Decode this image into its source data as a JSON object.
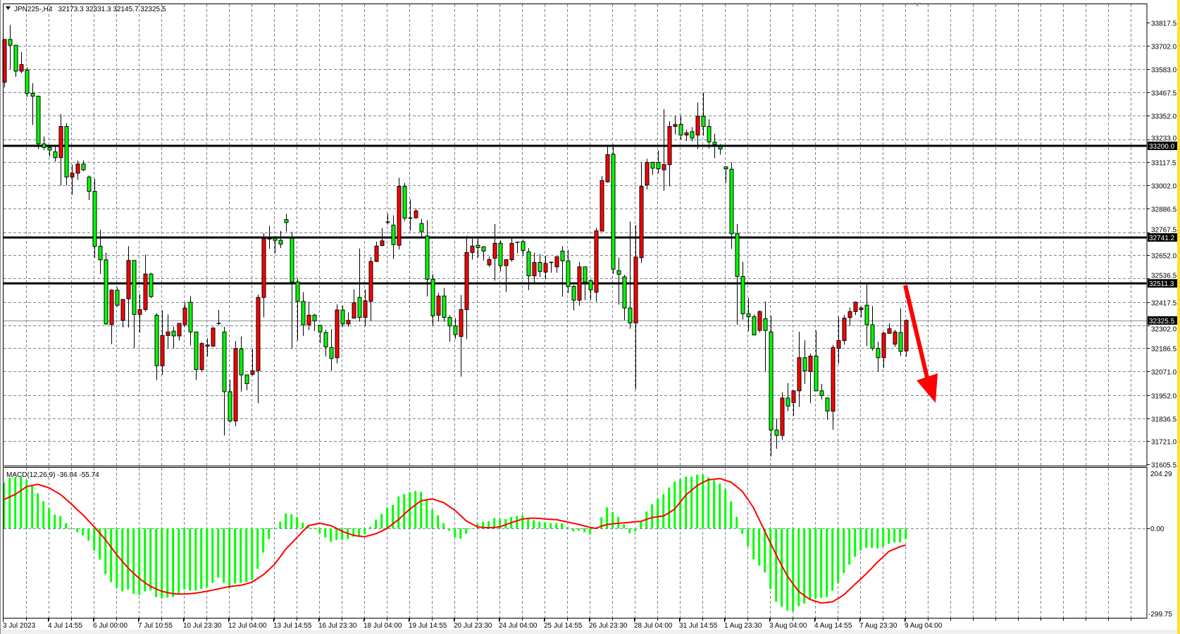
{
  "header": {
    "symbol": "JPN225-,H4",
    "ohlc": "32173.3 32331.3 32145.7 32325.5",
    "menu_icon": "triangle-down-icon"
  },
  "indicator": {
    "label": "MACD(12,26,9) -36.04 -55.74",
    "axis_labels": [
      "204.29",
      "0.00",
      "-299.75"
    ]
  },
  "colors": {
    "bull_candle": "#ff0000",
    "bear_candle": "#00ff00",
    "macd_histogram": "#00ff00",
    "macd_signal": "#ff0000",
    "level_line": "#000000",
    "arrow": "#ff0000",
    "grid": "#7a8591",
    "right_edge": "#ffe033"
  },
  "chart_data": {
    "type": "candlestick",
    "price_ticks": [
      "33817.5",
      "33702.0",
      "33583.0",
      "33467.5",
      "33352.0",
      "33233.0",
      "33117.5",
      "33002.0",
      "32886.5",
      "32767.5",
      "32652.0",
      "32536.5",
      "32417.5",
      "32302.0",
      "32186.5",
      "32071.0",
      "31952.0",
      "31836.5",
      "31721.0",
      "31605.5"
    ],
    "ylim": [
      31605.5,
      33817.5
    ],
    "grid": true,
    "levels": [
      {
        "price": 33200.0,
        "label": "33200.0"
      },
      {
        "price": 32741.2,
        "label": "32741.2"
      },
      {
        "price": 32511.3,
        "label": "32511.3"
      }
    ],
    "current_price": {
      "price": 32325.5,
      "label": "32325.5"
    },
    "time_labels": [
      "3 Jul 2023",
      "4 Jul 14:55",
      "6 Jul 00:00",
      "7 Jul 10:55",
      "10 Jul 23:30",
      "12 Jul 04:00",
      "13 Jul 14:55",
      "16 Jul 23:30",
      "18 Jul 04:00",
      "19 Jul 14:55",
      "20 Jul 23:30",
      "24 Jul 04:00",
      "25 Jul 14:55",
      "26 Jul 23:30",
      "28 Jul 04:00",
      "31 Jul 14:55",
      "1 Aug 23:30",
      "3 Aug 04:00",
      "4 Aug 14:55",
      "7 Aug 23:30",
      "9 Aug 04:00"
    ],
    "time_label_every_bars": 8,
    "candles_ohlc": [
      [
        33519,
        33733,
        33492,
        33733
      ],
      [
        33733,
        33805,
        33586,
        33704
      ],
      [
        33704,
        33704,
        33545,
        33574
      ],
      [
        33574,
        33669,
        33564,
        33607
      ],
      [
        33579,
        33593,
        33444,
        33463
      ],
      [
        33463,
        33514,
        33304,
        33449
      ],
      [
        33449,
        33449,
        33184,
        33210
      ],
      [
        33210,
        33247,
        33179,
        33192
      ],
      [
        33192,
        33196,
        33146,
        33179
      ],
      [
        33170,
        33196,
        33121,
        33141
      ],
      [
        33141,
        33358,
        33001,
        33297
      ],
      [
        33297,
        33314,
        33001,
        33044
      ],
      [
        33044,
        33106,
        32955,
        33063
      ],
      [
        33063,
        33127,
        33030,
        33109
      ],
      [
        33109,
        33127,
        33073,
        33080
      ],
      [
        33044,
        33052,
        32929,
        32972
      ],
      [
        32972,
        33034,
        32640,
        32697
      ],
      [
        32697,
        32780,
        32558,
        32629
      ],
      [
        32629,
        32665,
        32304,
        32308
      ],
      [
        32305,
        32481,
        32207,
        32477
      ],
      [
        32477,
        32492,
        32395,
        32402
      ],
      [
        32327,
        32431,
        32291,
        32431
      ],
      [
        32434,
        32698,
        32291,
        32626
      ],
      [
        32626,
        32626,
        32188,
        32356
      ],
      [
        32356,
        32457,
        32265,
        32380
      ],
      [
        32380,
        32655,
        32370,
        32558
      ],
      [
        32558,
        32564,
        32438,
        32445
      ],
      [
        32352,
        32362,
        32027,
        32099
      ],
      [
        32099,
        32376,
        32053,
        32250
      ],
      [
        32250,
        32356,
        32185,
        32268
      ],
      [
        32272,
        32294,
        32185,
        32248
      ],
      [
        32248,
        32311,
        32225,
        32311
      ],
      [
        32305,
        32417,
        32294,
        32388
      ],
      [
        32417,
        32448,
        32200,
        32268
      ],
      [
        32268,
        32268,
        32027,
        32080
      ],
      [
        32080,
        32217,
        32070,
        32210
      ],
      [
        32197,
        32236,
        32145,
        32203
      ],
      [
        32197,
        32294,
        32193,
        32287
      ],
      [
        32311,
        32378,
        32301,
        32311
      ],
      [
        32268,
        32294,
        31750,
        31969
      ],
      [
        31969,
        32027,
        31813,
        31822
      ],
      [
        31822,
        32222,
        31796,
        32185
      ],
      [
        32183,
        32246,
        31969,
        32053
      ],
      [
        32053,
        32053,
        31976,
        32009
      ],
      [
        32056,
        32183,
        32050,
        32073
      ],
      [
        32074,
        32455,
        31911,
        32441
      ],
      [
        32441,
        32763,
        32341,
        32737
      ],
      [
        32734,
        32799,
        32684,
        32731
      ],
      [
        32737,
        32749,
        32662,
        32727
      ],
      [
        32727,
        32774,
        32688,
        32708
      ],
      [
        32831,
        32860,
        32770,
        32816
      ],
      [
        32737,
        32770,
        32183,
        32518
      ],
      [
        32518,
        32535,
        32225,
        32421
      ],
      [
        32421,
        32467,
        32248,
        32304
      ],
      [
        32304,
        32421,
        32277,
        32352
      ],
      [
        32352,
        32359,
        32272,
        32323
      ],
      [
        32301,
        32304,
        32212,
        32268
      ],
      [
        32265,
        32279,
        32145,
        32193
      ],
      [
        32190,
        32282,
        32074,
        32135
      ],
      [
        32139,
        32406,
        32110,
        32378
      ],
      [
        32378,
        32399,
        32294,
        32308
      ],
      [
        32308,
        32366,
        32294,
        32326
      ],
      [
        32337,
        32481,
        32335,
        32414
      ],
      [
        32441,
        32686,
        32320,
        32341
      ],
      [
        32341,
        32481,
        32298,
        32424
      ],
      [
        32421,
        32643,
        32323,
        32621
      ],
      [
        32621,
        32720,
        32618,
        32698
      ],
      [
        32701,
        32789,
        32698,
        32724
      ],
      [
        32818,
        32860,
        32806,
        32818
      ],
      [
        32803,
        32852,
        32633,
        32705
      ],
      [
        32702,
        33040,
        32681,
        32997
      ],
      [
        32997,
        33014,
        32824,
        32838
      ],
      [
        32838,
        32932,
        32774,
        32838
      ],
      [
        32840,
        32886,
        32835,
        32874
      ],
      [
        32811,
        32835,
        32746,
        32770
      ],
      [
        32749,
        32828,
        32445,
        32532
      ],
      [
        32532,
        32557,
        32301,
        32349
      ],
      [
        32352,
        32464,
        32320,
        32448
      ],
      [
        32448,
        32489,
        32320,
        32341
      ],
      [
        32341,
        32352,
        32219,
        32298
      ],
      [
        32298,
        32337,
        32233,
        32255
      ],
      [
        32246,
        32453,
        32044,
        32380
      ],
      [
        32380,
        32749,
        32232,
        32666
      ],
      [
        32666,
        32734,
        32630,
        32698
      ],
      [
        32702,
        32741,
        32640,
        32691
      ],
      [
        32694,
        32698,
        32626,
        32673
      ],
      [
        32604,
        32645,
        32593,
        32630
      ],
      [
        32637,
        32809,
        32525,
        32712
      ],
      [
        32712,
        32727,
        32572,
        32600
      ],
      [
        32600,
        32630,
        32467,
        32630
      ],
      [
        32630,
        32737,
        32619,
        32712
      ],
      [
        32717,
        32720,
        32662,
        32717
      ],
      [
        32720,
        32731,
        32650,
        32676
      ],
      [
        32669,
        32688,
        32477,
        32549
      ],
      [
        32549,
        32665,
        32515,
        32616
      ],
      [
        32616,
        32658,
        32542,
        32571
      ],
      [
        32568,
        32650,
        32532,
        32611
      ],
      [
        32616,
        32621,
        32564,
        32616
      ],
      [
        32594,
        32645,
        32564,
        32645
      ],
      [
        32673,
        32698,
        32445,
        32624
      ],
      [
        32624,
        32679,
        32463,
        32496
      ],
      [
        32496,
        32503,
        32376,
        32427
      ],
      [
        32427,
        32619,
        32399,
        32594
      ],
      [
        32594,
        32594,
        32428,
        32518
      ],
      [
        32525,
        32532,
        32428,
        32479
      ],
      [
        32467,
        32789,
        32419,
        32774
      ],
      [
        32773,
        33049,
        32773,
        33026
      ],
      [
        33020,
        33199,
        33016,
        33156
      ],
      [
        33158,
        33208,
        32558,
        32582
      ],
      [
        32575,
        32640,
        32405,
        32557
      ],
      [
        32544,
        32554,
        32327,
        32388
      ],
      [
        32388,
        32821,
        32284,
        32313
      ],
      [
        32313,
        32803,
        31981,
        32643
      ],
      [
        32640,
        33117,
        32614,
        32997
      ],
      [
        33004,
        33135,
        32982,
        33117
      ],
      [
        33117,
        33121,
        33055,
        33088
      ],
      [
        33117,
        33177,
        33062,
        33085
      ],
      [
        33080,
        33384,
        32975,
        33106
      ],
      [
        33106,
        33323,
        32997,
        33297
      ],
      [
        33297,
        33352,
        33257,
        33307
      ],
      [
        33307,
        33352,
        33232,
        33254
      ],
      [
        33254,
        33280,
        33225,
        33265
      ],
      [
        33271,
        33294,
        33222,
        33239
      ],
      [
        33254,
        33417,
        33184,
        33348
      ],
      [
        33348,
        33467,
        33251,
        33297
      ],
      [
        33297,
        33333,
        33186,
        33220
      ],
      [
        33218,
        33261,
        33138,
        33206
      ],
      [
        33196,
        33210,
        33156,
        33184
      ],
      [
        33095,
        33098,
        33016,
        33085
      ],
      [
        33083,
        33117,
        32684,
        32760
      ],
      [
        32760,
        32809,
        32304,
        32546
      ],
      [
        32546,
        32619,
        32330,
        32359
      ],
      [
        32359,
        32438,
        32272,
        32344
      ],
      [
        32344,
        32356,
        32251,
        32253
      ],
      [
        32276,
        32376,
        32265,
        32370
      ],
      [
        32334,
        32421,
        32070,
        32275
      ],
      [
        32268,
        32349,
        31644,
        31777
      ],
      [
        31777,
        31835,
        31683,
        31750
      ],
      [
        31750,
        31966,
        31727,
        31937
      ],
      [
        31937,
        32012,
        31871,
        31897
      ],
      [
        31914,
        31976,
        31849,
        31973
      ],
      [
        31973,
        32269,
        31892,
        32139
      ],
      [
        32139,
        32226,
        32008,
        32073
      ],
      [
        32070,
        32160,
        31911,
        32147
      ],
      [
        32147,
        32276,
        31973,
        31973
      ],
      [
        31973,
        32008,
        31929,
        31950
      ],
      [
        31937,
        31940,
        31828,
        31872
      ],
      [
        31871,
        32203,
        31778,
        32190
      ],
      [
        32186,
        32344,
        32109,
        32225
      ],
      [
        32225,
        32352,
        32204,
        32337
      ],
      [
        32340,
        32390,
        32298,
        32370
      ],
      [
        32370,
        32421,
        32352,
        32417
      ],
      [
        32380,
        32395,
        32341,
        32388
      ],
      [
        32402,
        32510,
        32197,
        32304
      ],
      [
        32304,
        32398,
        32174,
        32186
      ],
      [
        32186,
        32219,
        32070,
        32139
      ],
      [
        32139,
        32268,
        32087,
        32262
      ],
      [
        32261,
        32311,
        32259,
        32284
      ],
      [
        32207,
        32279,
        32193,
        32268
      ],
      [
        32265,
        32385,
        32147,
        32171
      ],
      [
        32173.3,
        32331.3,
        32145.7,
        32325.5
      ]
    ],
    "macd": {
      "ylim": [
        -299.75,
        204.29
      ],
      "histogram": [
        152,
        168,
        171,
        172,
        161,
        144,
        117,
        90,
        67,
        46,
        41,
        17,
        0,
        -13,
        -24,
        -41,
        -74,
        -104,
        -153,
        -179,
        -198,
        -210,
        -204,
        -218,
        -222,
        -210,
        -207,
        -229,
        -233,
        -231,
        -229,
        -218,
        -204,
        -207,
        -207,
        -202,
        -196,
        -182,
        -165,
        -182,
        -200,
        -184,
        -182,
        -179,
        -172,
        -135,
        -81,
        -36,
        -2,
        22,
        50,
        47,
        38,
        19,
        9,
        1,
        -16,
        -30,
        -45,
        -39,
        -39,
        -36,
        -28,
        -28,
        -20,
        5,
        29,
        48,
        69,
        78,
        106,
        114,
        121,
        125,
        121,
        96,
        62,
        43,
        17,
        -8,
        -30,
        -34,
        -18,
        0,
        15,
        22,
        24,
        34,
        31,
        31,
        38,
        41,
        43,
        31,
        27,
        22,
        20,
        17,
        17,
        17,
        5,
        -10,
        -8,
        -13,
        -20,
        -2,
        37,
        70,
        55,
        38,
        13,
        -16,
        -10,
        21,
        56,
        80,
        99,
        114,
        136,
        156,
        164,
        172,
        172,
        179,
        179,
        170,
        160,
        149,
        131,
        90,
        38,
        -18,
        -60,
        -103,
        -124,
        -147,
        -202,
        -245,
        -262,
        -274,
        -276,
        -259,
        -251,
        -237,
        -235,
        -232,
        -229,
        -208,
        -182,
        -149,
        -121,
        -95,
        -74,
        -65,
        -65,
        -67,
        -61,
        -52,
        -47,
        -47,
        -36
      ],
      "signal": [
        96,
        105,
        113,
        126,
        139,
        143,
        147,
        141,
        135,
        124,
        113,
        97,
        80,
        62,
        45,
        25,
        5,
        -16,
        -38,
        -63,
        -88,
        -110,
        -132,
        -150,
        -167,
        -181,
        -194,
        -202,
        -210,
        -214,
        -218,
        -219,
        -219,
        -218,
        -216,
        -213,
        -210,
        -206,
        -202,
        -198,
        -194,
        -192,
        -190,
        -185,
        -179,
        -167,
        -155,
        -138,
        -120,
        -95,
        -69,
        -50,
        -30,
        -10,
        9,
        13,
        17,
        13,
        9,
        0,
        -10,
        -17,
        -23,
        -26,
        -28,
        -23,
        -18,
        -9,
        0,
        15,
        29,
        47,
        64,
        78,
        92,
        95,
        98,
        92,
        86,
        73,
        60,
        43,
        25,
        15,
        5,
        3,
        2,
        3,
        5,
        12,
        19,
        25,
        31,
        33,
        34,
        33,
        31,
        30,
        29,
        25,
        21,
        17,
        13,
        8,
        3,
        0,
        7,
        13,
        15,
        17,
        18,
        20,
        22,
        23,
        30,
        36,
        39,
        41,
        52,
        64,
        88,
        111,
        127,
        143,
        153,
        162,
        164,
        166,
        160,
        154,
        139,
        123,
        96,
        68,
        29,
        -10,
        -49,
        -88,
        -124,
        -159,
        -185,
        -210,
        -224,
        -237,
        -243,
        -249,
        -247,
        -245,
        -234,
        -222,
        -204,
        -186,
        -169,
        -151,
        -132,
        -112,
        -95,
        -77,
        -69,
        -61,
        -56
      ]
    },
    "annotation": {
      "type": "arrow",
      "direction": "down"
    }
  }
}
